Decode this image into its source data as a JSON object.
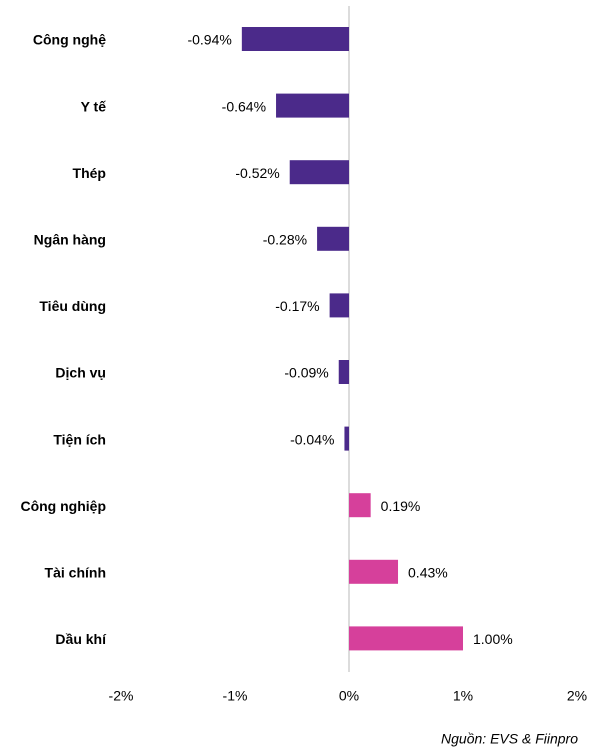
{
  "chart_data": {
    "type": "bar",
    "orientation": "horizontal",
    "categories": [
      "Công nghệ",
      "Y tế",
      "Thép",
      "Ngân hàng",
      "Tiêu dùng",
      "Dịch vụ",
      "Tiện ích",
      "Công nghiệp",
      "Tài chính",
      "Dầu khí"
    ],
    "values": [
      -0.94,
      -0.64,
      -0.52,
      -0.28,
      -0.17,
      -0.09,
      -0.04,
      0.19,
      0.43,
      1.0
    ],
    "value_labels": [
      "-0.94%",
      "-0.64%",
      "-0.52%",
      "-0.28%",
      "-0.17%",
      "-0.09%",
      "-0.04%",
      "0.19%",
      "0.43%",
      "1.00%"
    ],
    "colors": [
      "#4b2a8a",
      "#4b2a8a",
      "#4b2a8a",
      "#4b2a8a",
      "#4b2a8a",
      "#4b2a8a",
      "#4b2a8a",
      "#d6409b",
      "#d6409b",
      "#d6409b"
    ],
    "xlim": [
      -2,
      2
    ],
    "xticks": [
      {
        "value": -2,
        "label": "-2%"
      },
      {
        "value": -1,
        "label": "-1%"
      },
      {
        "value": 0,
        "label": "0%"
      },
      {
        "value": 1,
        "label": "1%"
      },
      {
        "value": 2,
        "label": "2%"
      }
    ],
    "source": "Nguồn: EVS & Fiinpro"
  }
}
